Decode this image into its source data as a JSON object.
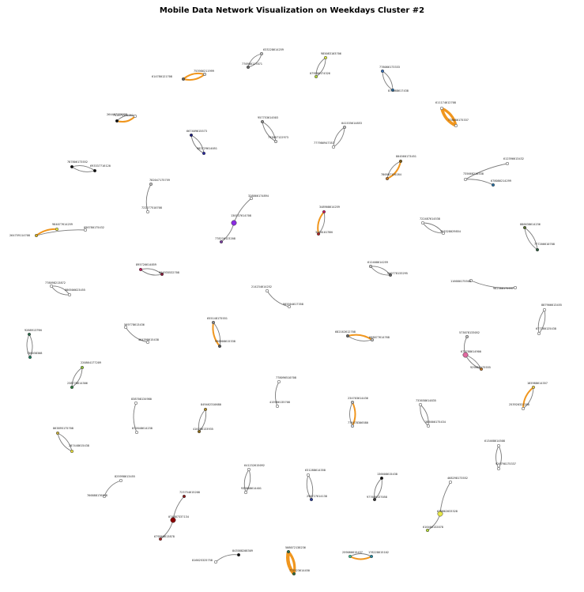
{
  "title": "Mobile Data Network Visualization on Weekdays Cluster #2",
  "colors": {
    "edge_grey": "#7a7a7a",
    "edge_orange": "#f0961e",
    "node_outline": "#333333"
  },
  "components": [
    {
      "nodes": [
        {
          "label": "633228614259",
          "color": "#bfbfbf"
        },
        {
          "label": "770986117871",
          "color": "#666666"
        }
      ],
      "edges": [
        {
          "weight": 1
        },
        {
          "weight": 1
        }
      ]
    },
    {
      "nodes": [
        {
          "label": "985083103706",
          "color": "#d9e94a"
        },
        {
          "label": "079906174326",
          "color": "#b5d93e"
        }
      ],
      "edges": [
        {
          "weight": 1
        },
        {
          "weight": 1
        }
      ]
    },
    {
      "nodes": [
        {
          "label": "778086173333",
          "color": "#3a6fb5"
        },
        {
          "label": "873088617438",
          "color": "#2d7fbf"
        }
      ],
      "edges": [
        {
          "weight": 1
        },
        {
          "weight": 1
        }
      ]
    },
    {
      "nodes": [
        {
          "label": "753986211999",
          "color": "#e0e0e0"
        },
        {
          "label": "614780121708",
          "color": "#666666"
        }
      ],
      "edges": [
        {
          "weight": 2
        },
        {
          "weight": 2
        }
      ]
    },
    {
      "nodes": [
        {
          "label": "264467125928",
          "color": "#ffffff"
        },
        {
          "label": "732273131252",
          "color": "#111111"
        }
      ],
      "edges": [
        {
          "weight": 1
        },
        {
          "weight": 2
        }
      ]
    },
    {
      "nodes": [
        {
          "label": "611174612708",
          "color": "#ffffff"
        },
        {
          "label": "778686175337",
          "color": "#ffffff"
        }
      ],
      "edges": [
        {
          "weight": 5
        },
        {
          "weight": 4
        }
      ]
    },
    {
      "nodes": [
        {
          "label": "667409615573",
          "color": "#1d1d7a"
        },
        {
          "label": "982729614051",
          "color": "#2a2aa0"
        }
      ],
      "edges": [
        {
          "weight": 1
        },
        {
          "weight": 1
        }
      ]
    },
    {
      "nodes": [
        {
          "label": "957753614503",
          "color": "#888888"
        },
        {
          "label": "743087122973",
          "color": "#e0e0e0"
        }
      ],
      "edges": [
        {
          "weight": 1
        },
        {
          "weight": 1
        }
      ]
    },
    {
      "nodes": [
        {
          "label": "041535614853",
          "color": "#bfbfbf"
        },
        {
          "label": "777986947357",
          "color": "#ffffff"
        }
      ],
      "edges": [
        {
          "weight": 1
        },
        {
          "weight": 1
        }
      ]
    },
    {
      "nodes": [
        {
          "label": "787806173552",
          "color": "#111111"
        },
        {
          "label": "693337716120",
          "color": "#111111"
        }
      ],
      "edges": [
        {
          "weight": 1
        },
        {
          "weight": 1
        }
      ]
    },
    {
      "nodes": [
        {
          "label": "804560173451",
          "color": "#7a5a16"
        },
        {
          "label": "780987120284",
          "color": "#c0762a"
        }
      ],
      "edges": [
        {
          "weight": 1
        },
        {
          "weight": 2
        }
      ]
    },
    {
      "nodes": [
        {
          "label": "612396613432",
          "color": "#ffffff"
        },
        {
          "label": "735668210338",
          "color": "#ffffff"
        },
        {
          "label": "678086214299",
          "color": "#2a6fa0"
        }
      ],
      "edges": [
        {
          "weight": 1
        },
        {
          "weight": 1
        }
      ]
    },
    {
      "nodes": [
        {
          "label": "782047175759",
          "color": "#bfbfbf"
        },
        {
          "label": "722277510708",
          "color": "#ffffff"
        }
      ],
      "edges": [
        {
          "weight": 1
        }
      ]
    },
    {
      "nodes": [
        {
          "label": "328866174894",
          "color": "#ffffff"
        },
        {
          "label": "130137614708",
          "color": "#8a2be2"
        },
        {
          "label": "778226123208",
          "color": "#7b3fa0"
        }
      ],
      "edges": [
        {
          "weight": 1
        },
        {
          "weight": 1
        }
      ]
    },
    {
      "nodes": [
        {
          "label": "348908614259",
          "color": "#c81a5a"
        },
        {
          "label": "343810178N",
          "color": "#b22222"
        }
      ],
      "edges": [
        {
          "weight": 2
        },
        {
          "weight": 1
        }
      ]
    },
    {
      "nodes": [
        {
          "label": "722487614538",
          "color": "#ffffff"
        },
        {
          "label": "323328029854",
          "color": "#ffffff"
        }
      ],
      "edges": [
        {
          "weight": 1
        },
        {
          "weight": 1
        }
      ]
    },
    {
      "nodes": [
        {
          "label": "886638614236",
          "color": "#556b2f"
        },
        {
          "label": "777206610708",
          "color": "#2e5e3e"
        }
      ],
      "edges": [
        {
          "weight": 1
        },
        {
          "weight": 1
        }
      ]
    },
    {
      "nodes": [
        {
          "label": "984077614259",
          "color": "#e8e84a"
        },
        {
          "label": "264759114708",
          "color": "#d8b020"
        },
        {
          "label": "096780175432",
          "color": "#ffffff"
        }
      ],
      "edges": [
        {
          "weight": 2
        },
        {
          "weight": 1
        }
      ]
    },
    {
      "nodes": [
        {
          "label": "612408614259",
          "color": "#bfbfbf"
        },
        {
          "label": "940778133295",
          "color": "#666666"
        }
      ],
      "edges": [
        {
          "weight": 1
        },
        {
          "weight": 1
        }
      ]
    },
    {
      "nodes": [
        {
          "label": "116680175508",
          "color": "#ffffff"
        },
        {
          "label": "902388175537",
          "color": "#ffffff"
        }
      ],
      "edges": [
        {
          "weight": 1
        }
      ]
    },
    {
      "nodes": [
        {
          "label": "895726614859",
          "color": "#c2185b"
        },
        {
          "label": "664935532708",
          "color": "#8b1a3a"
        }
      ],
      "edges": [
        {
          "weight": 1
        },
        {
          "weight": 1
        }
      ]
    },
    {
      "nodes": [
        {
          "label": "778098213872",
          "color": "#ffffff"
        },
        {
          "label": "086506623455",
          "color": "#ffffff"
        }
      ],
      "edges": [
        {
          "weight": 1
        },
        {
          "weight": 1
        }
      ]
    },
    {
      "nodes": [
        {
          "label": "214234614252",
          "color": "#ffffff"
        },
        {
          "label": "905504617358",
          "color": "#ffffff"
        }
      ],
      "edges": [
        {
          "weight": 1
        }
      ]
    },
    {
      "nodes": [
        {
          "label": "887906613455",
          "color": "#ffffff"
        },
        {
          "label": "677380125438",
          "color": "#ffffff"
        }
      ],
      "edges": [
        {
          "weight": 1
        },
        {
          "weight": 1
        }
      ]
    },
    {
      "nodes": [
        {
          "label": "928891379N",
          "color": "#2e6e4e"
        },
        {
          "label": "738038308",
          "color": "#1e7e5e"
        }
      ],
      "edges": [
        {
          "weight": 1
        },
        {
          "weight": 1
        }
      ]
    },
    {
      "nodes": [
        {
          "label": "569778613436",
          "color": "#ffffff"
        },
        {
          "label": "464398615438",
          "color": "#ffffff"
        }
      ],
      "edges": [
        {
          "weight": 1
        }
      ]
    },
    {
      "nodes": [
        {
          "label": "655148175551",
          "color": "#888888"
        },
        {
          "label": "996808615338",
          "color": "#555555"
        }
      ],
      "edges": [
        {
          "weight": 2
        },
        {
          "weight": 1
        }
      ]
    },
    {
      "nodes": [
        {
          "label": "682162612708",
          "color": "#666666"
        },
        {
          "label": "668077614768",
          "color": "#bfbfbf"
        }
      ],
      "edges": [
        {
          "weight": 1
        },
        {
          "weight": 2
        }
      ]
    },
    {
      "nodes": [
        {
          "label": "573078133052",
          "color": "#bfbfbf"
        },
        {
          "label": "673788614900",
          "color": "#e06aa0"
        },
        {
          "label": "929858175555",
          "color": "#c0762a"
        }
      ],
      "edges": [
        {
          "weight": 1
        },
        {
          "weight": 1
        },
        {
          "weight": 1
        }
      ]
    },
    {
      "nodes": [
        {
          "label": "220864177209",
          "color": "#8fbf3f"
        },
        {
          "label": "238778614306",
          "color": "#2e7e3e"
        }
      ],
      "edges": [
        {
          "weight": 1
        },
        {
          "weight": 1
        }
      ]
    },
    {
      "nodes": [
        {
          "label": "185988614357",
          "color": "#e8c84a"
        },
        {
          "label": "253920321208",
          "color": "#ffffff"
        }
      ],
      "edges": [
        {
          "weight": 2
        },
        {
          "weight": 1
        }
      ]
    },
    {
      "nodes": [
        {
          "label": "838708134980",
          "color": "#ffffff"
        },
        {
          "label": "872848614238",
          "color": "#ffffff"
        }
      ],
      "edges": [
        {
          "weight": 1
        }
      ]
    },
    {
      "nodes": [
        {
          "label": "849462310680",
          "color": "#b08a2a"
        },
        {
          "label": "416286133935",
          "color": "#8b6a1a"
        }
      ],
      "edges": [
        {
          "weight": 1
        },
        {
          "weight": 1
        }
      ]
    },
    {
      "nodes": [
        {
          "label": "778096510708",
          "color": "#ffffff"
        },
        {
          "label": "415986135708",
          "color": "#ffffff"
        }
      ],
      "edges": [
        {
          "weight": 1
        }
      ]
    },
    {
      "nodes": [
        {
          "label": "234703614436",
          "color": "#bfbfbf"
        },
        {
          "label": "776478306580",
          "color": "#d6e0f0"
        }
      ],
      "edges": [
        {
          "weight": 1
        },
        {
          "weight": 2
        }
      ]
    },
    {
      "nodes": [
        {
          "label": "733658614835",
          "color": "#ffffff"
        },
        {
          "label": "385000175434",
          "color": "#ffffff"
        }
      ],
      "edges": [
        {
          "weight": 1
        },
        {
          "weight": 1
        }
      ]
    },
    {
      "nodes": [
        {
          "label": "863895175708",
          "color": "#c8b040"
        },
        {
          "label": "287448615438",
          "color": "#e8e040"
        }
      ],
      "edges": [
        {
          "weight": 1
        },
        {
          "weight": 1
        }
      ]
    },
    {
      "nodes": [
        {
          "label": "613468614508",
          "color": "#ffffff"
        },
        {
          "label": "926798175337",
          "color": "#ffffff"
        }
      ],
      "edges": [
        {
          "weight": 1
        },
        {
          "weight": 1
        }
      ]
    },
    {
      "nodes": [
        {
          "label": "641232615092",
          "color": "#ffffff"
        },
        {
          "label": "939888614401",
          "color": "#ffffff"
        }
      ],
      "edges": [
        {
          "weight": 1
        },
        {
          "weight": 1
        }
      ]
    },
    {
      "nodes": [
        {
          "label": "631288614358",
          "color": "#ffffff"
        },
        {
          "label": "296727614138",
          "color": "#2a3a9a"
        }
      ],
      "edges": [
        {
          "weight": 1
        },
        {
          "weight": 1
        }
      ]
    },
    {
      "nodes": [
        {
          "label": "136608615438",
          "color": "#111111"
        },
        {
          "label": "977680137058",
          "color": "#333333"
        }
      ],
      "edges": [
        {
          "weight": 1
        },
        {
          "weight": 1
        }
      ]
    },
    {
      "nodes": [
        {
          "label": "825998613455",
          "color": "#ffffff"
        },
        {
          "label": "766888176578",
          "color": "#ffffff"
        }
      ],
      "edges": [
        {
          "weight": 1
        }
      ]
    },
    {
      "nodes": [
        {
          "label": "723754615208",
          "color": "#8b1a1a"
        },
        {
          "label": "074887337134",
          "color": "#8b0000"
        },
        {
          "label": "679968613878",
          "color": "#aa2222"
        }
      ],
      "edges": [
        {
          "weight": 1
        },
        {
          "weight": 1
        }
      ]
    },
    {
      "nodes": [
        {
          "label": "468298173552",
          "color": "#ffffff"
        },
        {
          "label": "670862033328",
          "color": "#e8e84a"
        },
        {
          "label": "616466132078",
          "color": "#b5d93e"
        }
      ],
      "edges": [
        {
          "weight": 1
        },
        {
          "weight": 1
        }
      ]
    },
    {
      "nodes": [
        {
          "label": "843588208309",
          "color": "#111111"
        },
        {
          "label": "816625325758",
          "color": "#ffffff"
        }
      ],
      "edges": [
        {
          "weight": 1
        }
      ]
    },
    {
      "nodes": [
        {
          "label": "508072138236",
          "color": "#2a6f4e"
        },
        {
          "label": "772323614450",
          "color": "#2e6e3e"
        }
      ],
      "edges": [
        {
          "weight": 6
        },
        {
          "weight": 4
        }
      ]
    },
    {
      "nodes": [
        {
          "label": "259086615437",
          "color": "#3fbf8f"
        },
        {
          "label": "178228615102",
          "color": "#2a8aa0"
        }
      ],
      "edges": [
        {
          "weight": 2
        },
        {
          "weight": 1
        }
      ]
    }
  ]
}
